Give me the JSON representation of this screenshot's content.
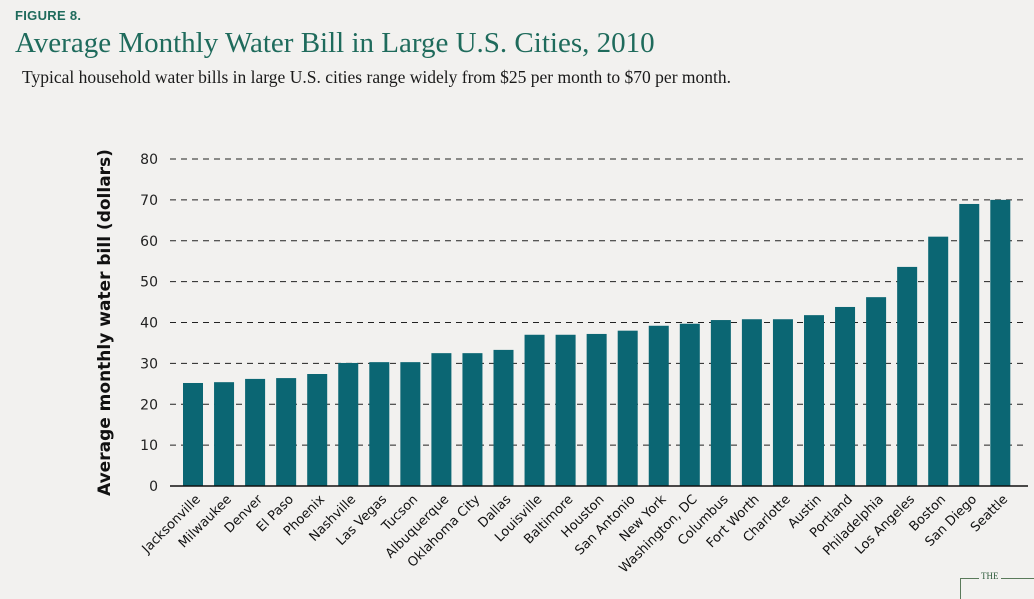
{
  "figure_label": "FIGURE 8.",
  "logo_text": "THE",
  "colors": {
    "bar": "#0b6673",
    "title": "#1f6b5c",
    "grid": "#222222"
  },
  "chart_data": {
    "type": "bar",
    "title": "Average Monthly Water Bill in Large U.S. Cities, 2010",
    "subtitle": "Typical household water bills in large U.S. cities range widely from $25 per month to $70 per month.",
    "xlabel": "",
    "ylabel": "Average monthly water bill (dollars)",
    "ylim": [
      0,
      80
    ],
    "yticks": [
      0,
      10,
      20,
      30,
      40,
      50,
      60,
      70,
      80
    ],
    "grid": true,
    "grid_style": "dashed-horizontal",
    "categories": [
      "Jacksonville",
      "Milwaukee",
      "Denver",
      "El Paso",
      "Phoenix",
      "Nashville",
      "Las Vegas",
      "Tucson",
      "Albuquerque",
      "Oklahoma City",
      "Dallas",
      "Louisville",
      "Baltimore",
      "Houston",
      "San Antonio",
      "New York",
      "Washington, DC",
      "Columbus",
      "Fort Worth",
      "Charlotte",
      "Austin",
      "Portland",
      "Philadelphia",
      "Los Angeles",
      "Boston",
      "San Diego",
      "Seattle"
    ],
    "values": [
      25.2,
      25.4,
      26.2,
      26.4,
      27.4,
      30.1,
      30.3,
      30.3,
      32.5,
      32.5,
      33.3,
      37.0,
      37.0,
      37.2,
      38.0,
      39.2,
      39.7,
      40.6,
      40.8,
      40.8,
      41.8,
      43.8,
      46.2,
      53.6,
      61.0,
      69.0,
      70.0
    ]
  }
}
